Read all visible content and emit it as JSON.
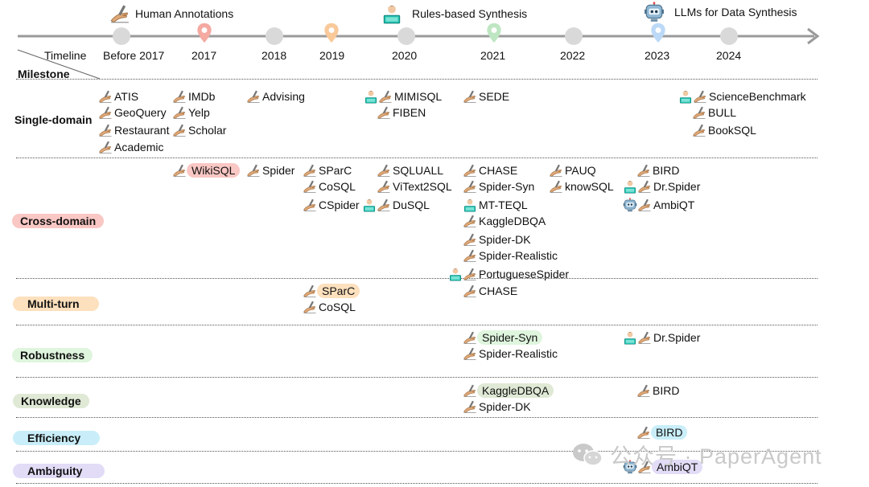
{
  "legend": [
    {
      "icon": "hand-writing-icon",
      "label": "Human Annotations"
    },
    {
      "icon": "person-laptop-icon",
      "label": "Rules-based Synthesis"
    },
    {
      "icon": "robot-icon",
      "label": "LLMs for Data Synthesis"
    }
  ],
  "header": {
    "timeline": "Timeline",
    "milestone": "Milestone"
  },
  "years": [
    "Before 2017",
    "2017",
    "2018",
    "2019",
    "2020",
    "2021",
    "2022",
    "2023",
    "2024"
  ],
  "colors": {
    "pin_2017": "#f4a9a1",
    "pin_2019": "#f9c99a",
    "pin_2021": "#bfe6c3",
    "pin_2023": "#bcd9f7",
    "cross_domain": "#f9c7c4",
    "multi_turn": "#fde0bd",
    "robustness": "#dff5de",
    "knowledge": "#dfe9d5",
    "efficiency": "#c9eef9",
    "ambiguity": "#e2dcf7",
    "timeline": "#9a9a9a",
    "node": "#d9d9d9"
  },
  "rows": [
    {
      "label": "Single-domain"
    },
    {
      "label": "Cross-domain"
    },
    {
      "label": "Multi-turn"
    },
    {
      "label": "Robustness"
    },
    {
      "label": "Knowledge"
    },
    {
      "label": "Efficiency"
    },
    {
      "label": "Ambiguity"
    }
  ],
  "single_domain": [
    {
      "name": "ATIS",
      "icons": [
        "hand-writing-icon"
      ]
    },
    {
      "name": "GeoQuery",
      "icons": [
        "hand-writing-icon"
      ]
    },
    {
      "name": "Restaurant",
      "icons": [
        "hand-writing-icon"
      ]
    },
    {
      "name": "Academic",
      "icons": [
        "hand-writing-icon"
      ]
    },
    {
      "name": "IMDb",
      "icons": [
        "hand-writing-icon"
      ]
    },
    {
      "name": "Yelp",
      "icons": [
        "hand-writing-icon"
      ]
    },
    {
      "name": "Scholar",
      "icons": [
        "hand-writing-icon"
      ]
    },
    {
      "name": "Advising",
      "icons": [
        "hand-writing-icon"
      ]
    },
    {
      "name": "MIMISQL",
      "icons": [
        "person-laptop-icon",
        "hand-writing-icon"
      ]
    },
    {
      "name": "FIBEN",
      "icons": [
        "hand-writing-icon"
      ]
    },
    {
      "name": "SEDE",
      "icons": [
        "hand-writing-icon"
      ]
    },
    {
      "name": "ScienceBenchmark",
      "icons": [
        "person-laptop-icon",
        "hand-writing-icon"
      ]
    },
    {
      "name": "BULL",
      "icons": [
        "hand-writing-icon"
      ]
    },
    {
      "name": "BookSQL",
      "icons": [
        "hand-writing-icon"
      ]
    }
  ],
  "cross_domain": [
    {
      "name": "WikiSQL",
      "icons": [
        "hand-writing-icon"
      ]
    },
    {
      "name": "Spider",
      "icons": [
        "hand-writing-icon"
      ]
    },
    {
      "name": "SParC",
      "icons": [
        "hand-writing-icon"
      ]
    },
    {
      "name": "CoSQL",
      "icons": [
        "hand-writing-icon"
      ]
    },
    {
      "name": "CSpider",
      "icons": [
        "hand-writing-icon"
      ]
    },
    {
      "name": "SQLUALL",
      "icons": [
        "hand-writing-icon"
      ]
    },
    {
      "name": "ViText2SQL",
      "icons": [
        "hand-writing-icon"
      ]
    },
    {
      "name": "DuSQL",
      "icons": [
        "person-laptop-icon",
        "hand-writing-icon"
      ]
    },
    {
      "name": "CHASE",
      "icons": [
        "hand-writing-icon"
      ]
    },
    {
      "name": "Spider-Syn",
      "icons": [
        "hand-writing-icon"
      ]
    },
    {
      "name": "MT-TEQL",
      "icons": [
        "person-laptop-icon"
      ]
    },
    {
      "name": "KaggleDBQA",
      "icons": [
        "hand-writing-icon"
      ]
    },
    {
      "name": "Spider-DK",
      "icons": [
        "hand-writing-icon"
      ]
    },
    {
      "name": "Spider-Realistic",
      "icons": [
        "hand-writing-icon"
      ]
    },
    {
      "name": "PortugueseSpider",
      "icons": [
        "person-laptop-icon",
        "hand-writing-icon"
      ]
    },
    {
      "name": "PAUQ",
      "icons": [
        "hand-writing-icon"
      ]
    },
    {
      "name": "knowSQL",
      "icons": [
        "hand-writing-icon"
      ]
    },
    {
      "name": "BIRD",
      "icons": [
        "hand-writing-icon"
      ]
    },
    {
      "name": "Dr.Spider",
      "icons": [
        "person-laptop-icon",
        "hand-writing-icon"
      ]
    },
    {
      "name": "AmbiQT",
      "icons": [
        "robot-icon",
        "hand-writing-icon"
      ]
    }
  ],
  "multi_turn": [
    {
      "name": "SParC",
      "icons": [
        "hand-writing-icon"
      ]
    },
    {
      "name": "CoSQL",
      "icons": [
        "hand-writing-icon"
      ]
    },
    {
      "name": "CHASE",
      "icons": [
        "hand-writing-icon"
      ]
    }
  ],
  "robustness": [
    {
      "name": "Spider-Syn",
      "icons": [
        "hand-writing-icon"
      ]
    },
    {
      "name": "Spider-Realistic",
      "icons": [
        "hand-writing-icon"
      ]
    },
    {
      "name": "Dr.Spider",
      "icons": [
        "person-laptop-icon",
        "hand-writing-icon"
      ]
    }
  ],
  "knowledge": [
    {
      "name": "KaggleDBQA",
      "icons": [
        "hand-writing-icon"
      ]
    },
    {
      "name": "Spider-DK",
      "icons": [
        "hand-writing-icon"
      ]
    },
    {
      "name": "BIRD",
      "icons": [
        "hand-writing-icon"
      ]
    }
  ],
  "efficiency": [
    {
      "name": "BIRD",
      "icons": [
        "hand-writing-icon"
      ]
    }
  ],
  "ambiguity": [
    {
      "name": "AmbiQT",
      "icons": [
        "robot-icon",
        "hand-writing-icon"
      ]
    }
  ],
  "watermark": {
    "icon": "wechat-icon",
    "text": "公众号 · PaperAgent"
  }
}
